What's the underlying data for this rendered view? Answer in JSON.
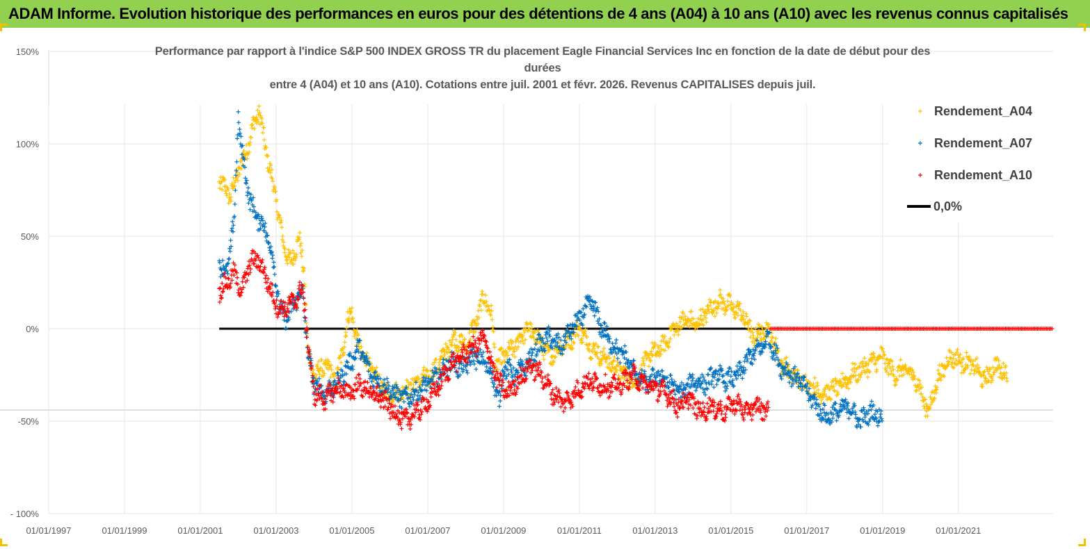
{
  "header": {
    "banner": "ADAM Informe. Evolution historique des performances en euros pour des détentions de 4 ans (A04) à 10 ans (A10) avec les revenus connus capitalisés"
  },
  "colors": {
    "banner_bg": "#92d050",
    "A04": "#ffc000",
    "A07": "#0070c0",
    "A10": "#ff0000",
    "zero": "#000000"
  },
  "chart_data": {
    "type": "scatter",
    "title_lines": [
      "Performance par rapport à l'indice S&P 500 INDEX GROSS TR  du placement Eagle Financial Services Inc en fonction de la date de début pour des",
      "durées",
      "entre 4 (A04) et 10 ans (A10). Cotations entre juil. 2001 et févr. 2026. Revenus CAPITALISES depuis juil."
    ],
    "y_ticks": [
      "150%",
      "100%",
      "50%",
      "0%",
      "-50%",
      "- 100%"
    ],
    "y_tick_values": [
      150,
      100,
      50,
      0,
      -50,
      -100
    ],
    "ylim": [
      -100,
      150
    ],
    "x_ticks": [
      "01/01/1997",
      "01/01/1999",
      "01/01/2001",
      "01/01/2003",
      "01/01/2005",
      "01/01/2007",
      "01/01/2009",
      "01/01/2011",
      "01/01/2013",
      "01/01/2015",
      "01/01/2017",
      "01/01/2019",
      "01/01/2021"
    ],
    "x_tick_years": [
      1997,
      1999,
      2001,
      2003,
      2005,
      2007,
      2009,
      2011,
      2013,
      2015,
      2017,
      2019,
      2021
    ],
    "xlim": [
      1997.0,
      2023.5
    ],
    "reference_line": {
      "label": "0,0%",
      "from": 2001.5,
      "to": 2023.5,
      "value": 0
    },
    "series": [
      {
        "name": "Rendement_A04",
        "anchors": [
          [
            2001.5,
            80
          ],
          [
            2001.8,
            72
          ],
          [
            2002.0,
            85
          ],
          [
            2002.2,
            95
          ],
          [
            2002.4,
            110
          ],
          [
            2002.55,
            118
          ],
          [
            2002.7,
            100
          ],
          [
            2002.9,
            80
          ],
          [
            2003.0,
            70
          ],
          [
            2003.2,
            45
          ],
          [
            2003.4,
            35
          ],
          [
            2003.6,
            50
          ],
          [
            2003.75,
            28
          ],
          [
            2003.85,
            -15
          ],
          [
            2004.0,
            -25
          ],
          [
            2004.3,
            -20
          ],
          [
            2004.6,
            -28
          ],
          [
            2004.9,
            5
          ],
          [
            2005.0,
            10
          ],
          [
            2005.1,
            -5
          ],
          [
            2005.3,
            -15
          ],
          [
            2005.6,
            -25
          ],
          [
            2005.9,
            -35
          ],
          [
            2006.2,
            -35
          ],
          [
            2006.5,
            -32
          ],
          [
            2006.8,
            -28
          ],
          [
            2007.1,
            -25
          ],
          [
            2007.4,
            -15
          ],
          [
            2007.7,
            -5
          ],
          [
            2008.0,
            -10
          ],
          [
            2008.3,
            5
          ],
          [
            2008.5,
            18
          ],
          [
            2008.7,
            5
          ],
          [
            2008.8,
            -20
          ],
          [
            2009.0,
            -15
          ],
          [
            2009.3,
            -10
          ],
          [
            2009.6,
            0
          ],
          [
            2009.9,
            -5
          ],
          [
            2010.2,
            -15
          ],
          [
            2010.5,
            -10
          ],
          [
            2010.8,
            -5
          ],
          [
            2011.0,
            0
          ],
          [
            2011.3,
            -10
          ],
          [
            2011.6,
            -15
          ],
          [
            2011.9,
            -20
          ],
          [
            2012.2,
            -25
          ],
          [
            2012.5,
            -30
          ],
          [
            2012.8,
            -15
          ],
          [
            2013.2,
            -10
          ],
          [
            2013.5,
            0
          ],
          [
            2013.8,
            5
          ],
          [
            2014.1,
            2
          ],
          [
            2014.4,
            10
          ],
          [
            2014.7,
            15
          ],
          [
            2015.0,
            12
          ],
          [
            2015.3,
            8
          ],
          [
            2015.6,
            -5
          ],
          [
            2015.9,
            0
          ],
          [
            2016.1,
            -5
          ],
          [
            2016.3,
            -18
          ],
          [
            2016.6,
            -25
          ],
          [
            2017.0,
            -30
          ],
          [
            2017.4,
            -35
          ],
          [
            2017.8,
            -32
          ],
          [
            2018.2,
            -25
          ],
          [
            2018.6,
            -20
          ],
          [
            2019.0,
            -15
          ],
          [
            2019.3,
            -25
          ],
          [
            2019.6,
            -22
          ],
          [
            2019.9,
            -28
          ],
          [
            2020.2,
            -45
          ],
          [
            2020.5,
            -25
          ],
          [
            2020.8,
            -15
          ],
          [
            2021.1,
            -18
          ],
          [
            2021.4,
            -20
          ],
          [
            2021.7,
            -28
          ],
          [
            2022.0,
            -20
          ],
          [
            2022.3,
            -25
          ]
        ]
      },
      {
        "name": "Rendement_A07",
        "anchors": [
          [
            2001.5,
            35
          ],
          [
            2001.7,
            30
          ],
          [
            2001.9,
            60
          ],
          [
            2002.0,
            115
          ],
          [
            2002.1,
            95
          ],
          [
            2002.3,
            70
          ],
          [
            2002.5,
            60
          ],
          [
            2002.7,
            55
          ],
          [
            2002.9,
            40
          ],
          [
            2003.1,
            10
          ],
          [
            2003.3,
            5
          ],
          [
            2003.5,
            15
          ],
          [
            2003.7,
            20
          ],
          [
            2003.85,
            -15
          ],
          [
            2004.0,
            -30
          ],
          [
            2004.3,
            -35
          ],
          [
            2004.6,
            -30
          ],
          [
            2004.9,
            -20
          ],
          [
            2005.2,
            -10
          ],
          [
            2005.5,
            -25
          ],
          [
            2005.8,
            -30
          ],
          [
            2006.1,
            -35
          ],
          [
            2006.4,
            -38
          ],
          [
            2006.7,
            -35
          ],
          [
            2007.0,
            -30
          ],
          [
            2007.3,
            -25
          ],
          [
            2007.6,
            -18
          ],
          [
            2007.9,
            -22
          ],
          [
            2008.2,
            -15
          ],
          [
            2008.5,
            -18
          ],
          [
            2008.7,
            -25
          ],
          [
            2008.9,
            -40
          ],
          [
            2009.0,
            -20
          ],
          [
            2009.3,
            -25
          ],
          [
            2009.6,
            -20
          ],
          [
            2009.9,
            -10
          ],
          [
            2010.2,
            -5
          ],
          [
            2010.5,
            -10
          ],
          [
            2010.8,
            0
          ],
          [
            2011.0,
            5
          ],
          [
            2011.3,
            15
          ],
          [
            2011.6,
            0
          ],
          [
            2011.9,
            -10
          ],
          [
            2012.2,
            -15
          ],
          [
            2012.5,
            -25
          ],
          [
            2012.8,
            -30
          ],
          [
            2013.1,
            -25
          ],
          [
            2013.4,
            -30
          ],
          [
            2013.7,
            -35
          ],
          [
            2014.0,
            -28
          ],
          [
            2014.3,
            -30
          ],
          [
            2014.6,
            -25
          ],
          [
            2014.9,
            -28
          ],
          [
            2015.2,
            -25
          ],
          [
            2015.5,
            -15
          ],
          [
            2015.8,
            -10
          ],
          [
            2016.0,
            -5
          ],
          [
            2016.3,
            -20
          ],
          [
            2016.6,
            -25
          ],
          [
            2016.9,
            -30
          ],
          [
            2017.2,
            -40
          ],
          [
            2017.5,
            -48
          ],
          [
            2017.8,
            -45
          ],
          [
            2018.1,
            -42
          ],
          [
            2018.4,
            -50
          ],
          [
            2018.7,
            -45
          ],
          [
            2019.0,
            -48
          ]
        ]
      },
      {
        "name": "Rendement_A10",
        "anchors": [
          [
            2001.5,
            20
          ],
          [
            2001.7,
            25
          ],
          [
            2001.9,
            30
          ],
          [
            2002.1,
            20
          ],
          [
            2002.3,
            35
          ],
          [
            2002.5,
            38
          ],
          [
            2002.7,
            30
          ],
          [
            2002.9,
            18
          ],
          [
            2003.1,
            10
          ],
          [
            2003.3,
            12
          ],
          [
            2003.5,
            15
          ],
          [
            2003.7,
            22
          ],
          [
            2003.85,
            -10
          ],
          [
            2004.0,
            -35
          ],
          [
            2004.3,
            -38
          ],
          [
            2004.6,
            -32
          ],
          [
            2004.9,
            -35
          ],
          [
            2005.2,
            -30
          ],
          [
            2005.5,
            -35
          ],
          [
            2005.8,
            -38
          ],
          [
            2006.1,
            -45
          ],
          [
            2006.4,
            -50
          ],
          [
            2006.7,
            -45
          ],
          [
            2007.0,
            -40
          ],
          [
            2007.3,
            -30
          ],
          [
            2007.6,
            -20
          ],
          [
            2007.9,
            -15
          ],
          [
            2008.2,
            -10
          ],
          [
            2008.5,
            -5
          ],
          [
            2008.7,
            -20
          ],
          [
            2008.9,
            -30
          ],
          [
            2009.1,
            -35
          ],
          [
            2009.4,
            -28
          ],
          [
            2009.7,
            -20
          ],
          [
            2010.0,
            -25
          ],
          [
            2010.3,
            -35
          ],
          [
            2010.6,
            -40
          ],
          [
            2010.9,
            -35
          ],
          [
            2011.2,
            -28
          ],
          [
            2011.5,
            -30
          ],
          [
            2011.8,
            -32
          ],
          [
            2012.1,
            -30
          ],
          [
            2012.4,
            -25
          ],
          [
            2012.7,
            -30
          ],
          [
            2013.0,
            -32
          ],
          [
            2013.3,
            -35
          ],
          [
            2013.6,
            -42
          ],
          [
            2013.9,
            -38
          ],
          [
            2014.2,
            -45
          ],
          [
            2014.5,
            -42
          ],
          [
            2014.8,
            -45
          ],
          [
            2015.1,
            -40
          ],
          [
            2015.4,
            -45
          ],
          [
            2015.7,
            -42
          ],
          [
            2016.0,
            -45
          ]
        ]
      }
    ]
  },
  "legend": [
    {
      "key": "A04",
      "label": "Rendement_A04"
    },
    {
      "key": "A07",
      "label": "Rendement_A07"
    },
    {
      "key": "A10",
      "label": "Rendement_A10"
    },
    {
      "key": "zero",
      "label": "0,0%"
    }
  ]
}
